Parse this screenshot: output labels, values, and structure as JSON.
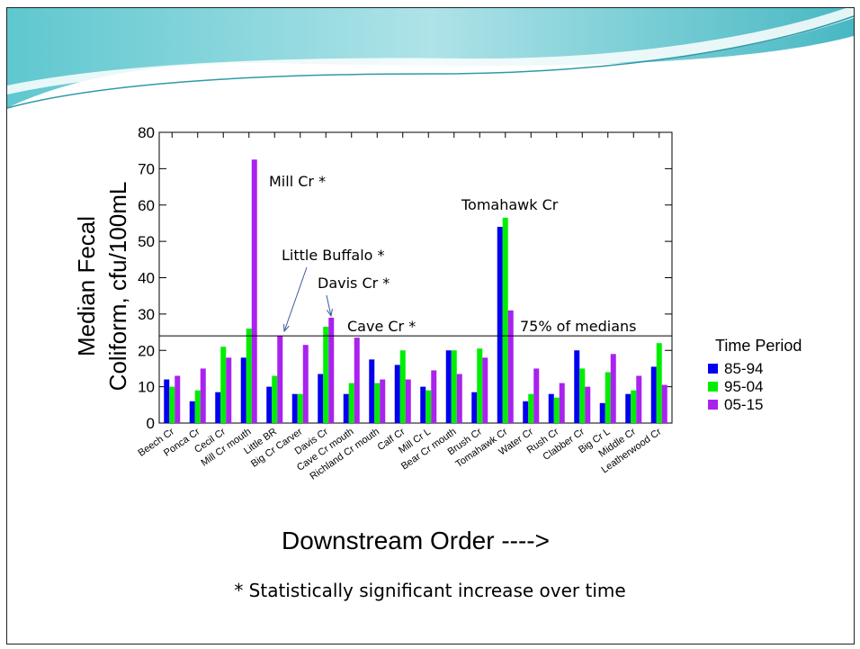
{
  "chart_data": {
    "type": "bar",
    "ylabel_line1": "Median Fecal",
    "ylabel_line2": "Coliform, cfu/100mL",
    "xlabel": "Downstream Order  ---->",
    "ylim": [
      0,
      80
    ],
    "yticks": [
      0,
      10,
      20,
      30,
      40,
      50,
      60,
      70,
      80
    ],
    "legend_title": "Time Period",
    "legend_position": "right",
    "categories": [
      "Beech Cr",
      "Ponca Cr",
      "Cecil Cr",
      "Mill Cr mouth",
      "Little BR",
      "Big Cr Carver",
      "Davis Cr",
      "Cave Cr mouth",
      "Richland Cr mouth",
      "Calf Cr",
      "Mill Cr L",
      "Bear Cr mouth",
      "Brush Cr",
      "Tomahawk Cr",
      "Water Cr",
      "Rush Cr",
      "Clabber Cr",
      "Big Cr L",
      "Middle Cr",
      "Leatherwood Cr"
    ],
    "series": [
      {
        "name": "85-94",
        "color": "#0000ee",
        "values": [
          12,
          6,
          8.5,
          18,
          10,
          8,
          13.5,
          8,
          17.5,
          16,
          10,
          20,
          8.5,
          54,
          6,
          8,
          20,
          5.5,
          8,
          15.5
        ]
      },
      {
        "name": "95-04",
        "color": "#00ee00",
        "values": [
          10,
          9,
          21,
          26,
          13,
          8,
          26.5,
          11,
          11,
          20,
          9,
          20,
          20.5,
          56.5,
          8,
          7,
          15,
          14,
          9,
          22
        ]
      },
      {
        "name": "05-15",
        "color": "#aa22ee",
        "values": [
          13,
          15,
          18,
          72.5,
          24,
          21.5,
          29,
          23.5,
          12,
          12,
          14.5,
          13.5,
          18,
          31,
          15,
          11,
          10,
          19,
          13,
          10.5
        ]
      }
    ],
    "reference_line": {
      "value": 24,
      "label": "75% of medians"
    },
    "annotations": [
      {
        "text": "Mill Cr *",
        "category": "Mill Cr mouth"
      },
      {
        "text": "Little Buffalo *",
        "category": "Little BR"
      },
      {
        "text": "Davis Cr *",
        "category": "Davis Cr"
      },
      {
        "text": "Cave Cr *",
        "category": "Cave Cr mouth"
      },
      {
        "text": "Tomahawk Cr",
        "category": "Tomahawk Cr"
      }
    ],
    "footnote": "* Statistically significant increase over time",
    "grid": false
  }
}
